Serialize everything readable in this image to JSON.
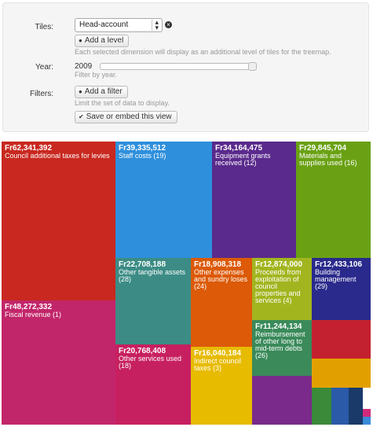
{
  "controls": {
    "tiles_label": "Tiles:",
    "tiles_value": "Head-account",
    "add_level_label": "Add a level",
    "add_level_help": "Each selected dimension will display as an additional level of tiles for the treemap.",
    "year_label": "Year:",
    "year_value": "2009",
    "year_help": "Filter by year.",
    "filters_label": "Filters:",
    "add_filter_label": "Add a filter",
    "filters_help": "Limit the set of data to display.",
    "save_embed_label": "Save or embed this view"
  },
  "treemap": {
    "tiles": [
      {
        "amount": "Fr62,341,392",
        "name": "Council additional taxes for levies",
        "color": "#c8281f"
      },
      {
        "amount": "Fr48,272,332",
        "name": "Fiscal revenue (1)",
        "color": "#c2266a"
      },
      {
        "amount": "Fr39,335,512",
        "name": "Staff costs (19)",
        "color": "#2e8fdc"
      },
      {
        "amount": "Fr34,164,475",
        "name": "Equipment grants received (12)",
        "color": "#5a2a8c"
      },
      {
        "amount": "Fr29,845,704",
        "name": "Materials and supplies used (16)",
        "color": "#6aa114"
      },
      {
        "amount": "Fr22,708,188",
        "name": "Other tangible assets (28)",
        "color": "#3c8c85"
      },
      {
        "amount": "Fr18,908,318",
        "name": "Other expenses and sundry loses (24)",
        "color": "#dc5a08"
      },
      {
        "amount": "Fr12,874,000",
        "name": "Proceeds from exploitation of council properties and services (4)",
        "color": "#a2b51f"
      },
      {
        "amount": "Fr12,433,106",
        "name": "Building management (29)",
        "color": "#2a2a8c"
      },
      {
        "amount": "Fr20,768,408",
        "name": "Other services used (18)",
        "color": "#c72060"
      },
      {
        "amount": "Fr16,040,184",
        "name": "Indirect council taxes (3)",
        "color": "#e7bb00"
      },
      {
        "amount": "Fr11,244,134",
        "name": "Reimbursement of other long to mid-term debts (26)",
        "color": "#3a8a5a"
      },
      {
        "amount": "",
        "name": "",
        "color": "#c42130"
      },
      {
        "amount": "",
        "name": "",
        "color": "#e2a000"
      },
      {
        "amount": "",
        "name": "",
        "color": "#7a2a8a"
      },
      {
        "amount": "",
        "name": "",
        "color": "#3a8a3a"
      },
      {
        "amount": "",
        "name": "",
        "color": "#2a5aa8"
      },
      {
        "amount": "",
        "name": "",
        "color": "#1a3a6a"
      },
      {
        "amount": "",
        "name": "",
        "color": "#d02a7a"
      },
      {
        "amount": "",
        "name": "",
        "color": "#3a8ad8"
      }
    ]
  }
}
